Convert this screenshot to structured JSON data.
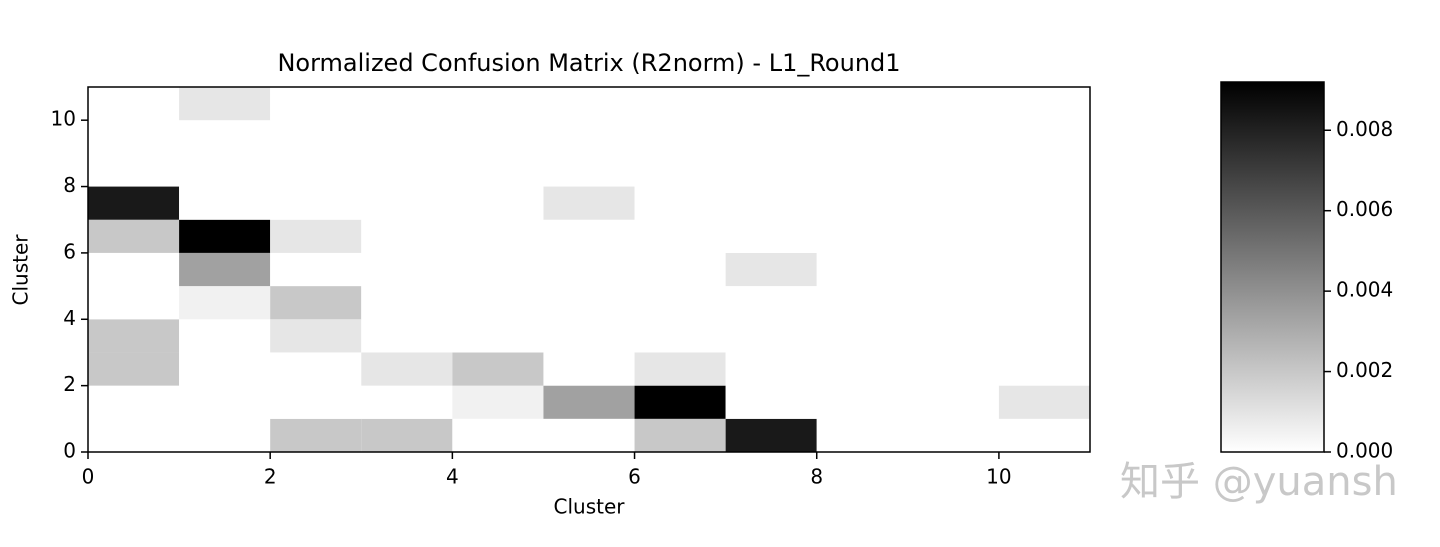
{
  "chart_data": {
    "type": "heatmap",
    "title": "Normalized Confusion Matrix (R2norm) - L1_Round1",
    "xlabel": "Cluster",
    "ylabel": "Cluster",
    "xlim": [
      0,
      11
    ],
    "ylim": [
      0,
      11
    ],
    "xticks": [
      0,
      2,
      4,
      6,
      8,
      10
    ],
    "yticks": [
      0,
      2,
      4,
      6,
      8,
      10
    ],
    "colormap": "Greys",
    "zlim": [
      0,
      0.0092
    ],
    "colorbar_ticks": [
      {
        "value": 0,
        "label": "0.000"
      },
      0.002,
      0.004,
      0.006,
      0.008
    ],
    "z": [
      [
        0,
        0,
        0.002,
        0.002,
        0,
        0,
        0.002,
        0.0083,
        0,
        0,
        0
      ],
      [
        0,
        0,
        0,
        0,
        0.0005,
        0.0034,
        0.0092,
        0,
        0,
        0,
        0.0009
      ],
      [
        0.002,
        0,
        0,
        0.0009,
        0.002,
        0,
        0.0009,
        0,
        0,
        0,
        0
      ],
      [
        0.002,
        0,
        0.0009,
        0,
        0,
        0,
        0,
        0,
        0,
        0,
        0
      ],
      [
        0,
        0.0005,
        0.002,
        0,
        0,
        0,
        0,
        0,
        0,
        0,
        0
      ],
      [
        0,
        0.0034,
        0,
        0,
        0,
        0,
        0,
        0.0009,
        0,
        0,
        0
      ],
      [
        0.002,
        0.0092,
        0.0009,
        0,
        0,
        0,
        0,
        0,
        0,
        0,
        0
      ],
      [
        0.0083,
        0,
        0,
        0,
        0,
        0.0009,
        0,
        0,
        0,
        0,
        0
      ],
      [
        0,
        0,
        0,
        0,
        0,
        0,
        0,
        0,
        0,
        0,
        0
      ],
      [
        0,
        0,
        0,
        0,
        0,
        0,
        0,
        0,
        0,
        0,
        0
      ],
      [
        0,
        0.0009,
        0,
        0,
        0,
        0,
        0,
        0,
        0,
        0,
        0
      ]
    ],
    "watermark": "知乎 @yuansh"
  }
}
